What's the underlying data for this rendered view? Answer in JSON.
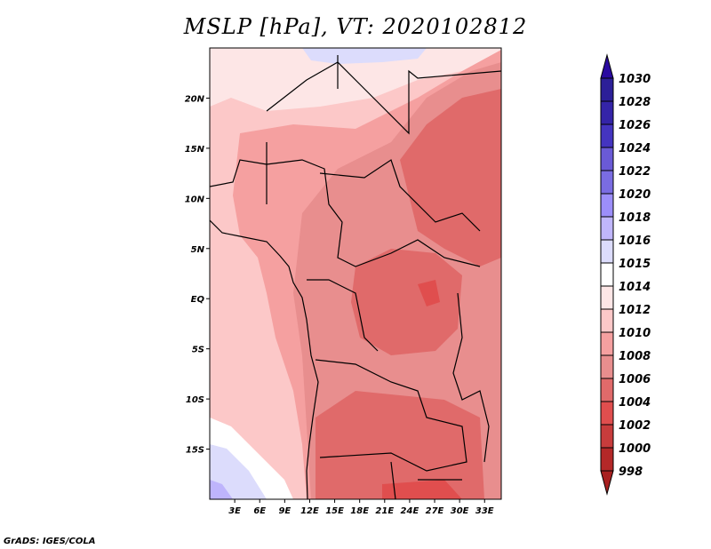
{
  "title": "MSLP [hPa], VT: 2020102812",
  "footer": "GrADS: IGES/COLA",
  "map": {
    "lat_labels": [
      "20N",
      "15N",
      "10N",
      "5N",
      "EQ",
      "5S",
      "10S",
      "15S"
    ],
    "lat_values": [
      20,
      15,
      10,
      5,
      0,
      -5,
      -10,
      -15
    ],
    "lon_labels": [
      "3E",
      "6E",
      "9E",
      "12E",
      "15E",
      "18E",
      "21E",
      "24E",
      "27E",
      "30E",
      "33E"
    ],
    "lon_values": [
      3,
      6,
      9,
      12,
      15,
      18,
      21,
      24,
      27,
      30,
      33
    ],
    "extent": {
      "lon_min": 0,
      "lon_max": 35,
      "lat_min": -20,
      "lat_max": 25
    }
  },
  "colorbar": {
    "labels": [
      "1030",
      "1028",
      "1026",
      "1024",
      "1022",
      "1020",
      "1018",
      "1016",
      "1015",
      "1014",
      "1012",
      "1010",
      "1008",
      "1006",
      "1004",
      "1002",
      "1000",
      "998"
    ],
    "top_arrow_color": "#2a0aa0",
    "bottom_arrow_color": "#a82020",
    "colors": [
      "#2c1f98",
      "#3424a8",
      "#4434c0",
      "#6a5ad6",
      "#7a6ce2",
      "#9c8efa",
      "#c0b6fc",
      "#dcdcfc",
      "#ffffff",
      "#fde6e6",
      "#fcc8c8",
      "#f5a0a0",
      "#e88e8e",
      "#e06a6a",
      "#e04e4e",
      "#c83c3c",
      "#b42828"
    ]
  }
}
